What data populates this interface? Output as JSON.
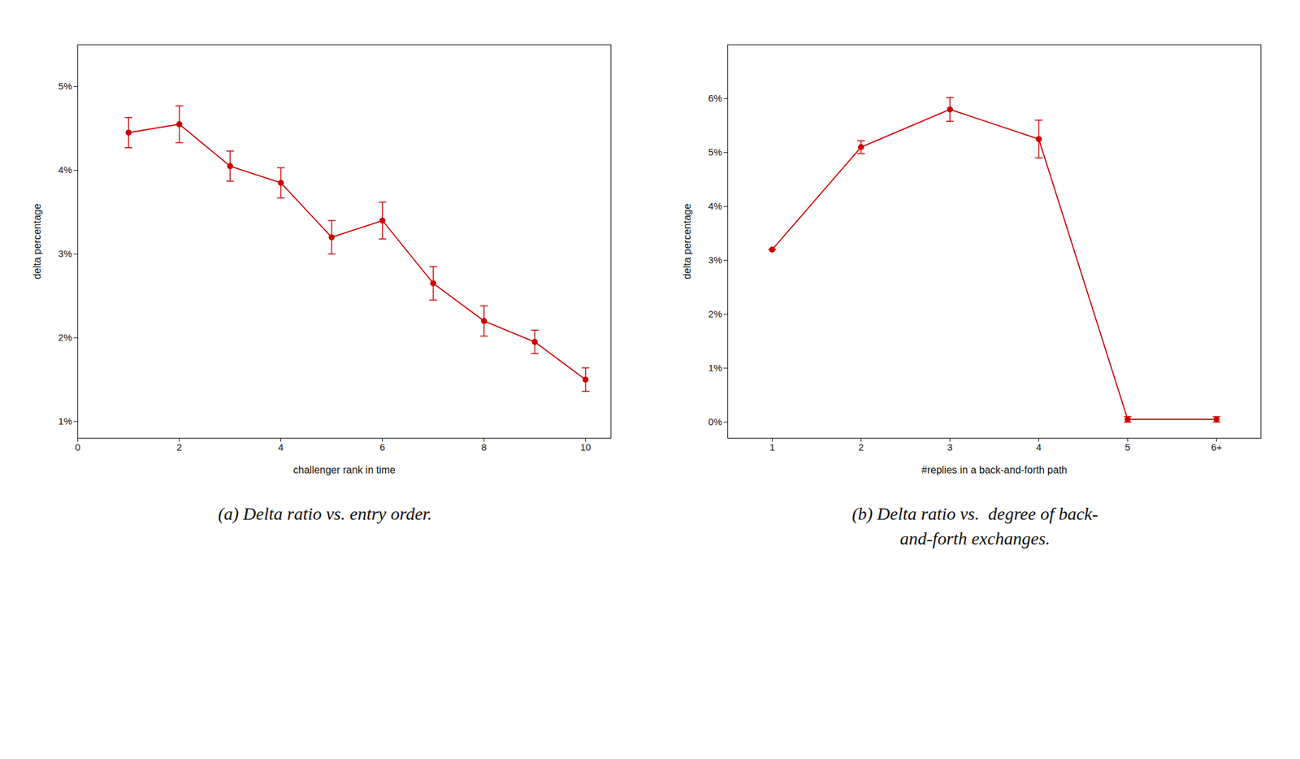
{
  "chart_data": [
    {
      "type": "line",
      "xlabel": "challenger rank in time",
      "ylabel": "delta percentage",
      "x": [
        1,
        2,
        3,
        4,
        5,
        6,
        7,
        8,
        9,
        10
      ],
      "values": [
        4.45,
        4.55,
        4.05,
        3.85,
        3.2,
        3.4,
        2.65,
        2.2,
        1.95,
        1.5
      ],
      "yerr": [
        0.18,
        0.22,
        0.18,
        0.18,
        0.2,
        0.22,
        0.2,
        0.18,
        0.14,
        0.14
      ],
      "xlim": [
        0,
        10.5
      ],
      "ylim": [
        0.8,
        5.5
      ],
      "xticks": [
        0,
        2,
        4,
        6,
        8,
        10
      ],
      "yticks": [
        {
          "value": 1,
          "label": "1%"
        },
        {
          "value": 2,
          "label": "2%"
        },
        {
          "value": 3,
          "label": "3%"
        },
        {
          "value": 4,
          "label": "4%"
        },
        {
          "value": 5,
          "label": "5%"
        }
      ],
      "color": "#cc0000",
      "marker": "circle",
      "grid": false,
      "caption": [
        "(a) Delta ratio vs. entry order."
      ]
    },
    {
      "type": "line",
      "xlabel": "#replies in a back-and-forth path",
      "ylabel": "delta percentage",
      "x": [
        1,
        2,
        3,
        4,
        5,
        6
      ],
      "values": [
        3.2,
        5.1,
        5.8,
        5.25,
        0.05,
        0.05
      ],
      "yerr": [
        0.0,
        0.12,
        0.22,
        0.35,
        0.05,
        0.05
      ],
      "xlim": [
        0.5,
        6.5
      ],
      "ylim": [
        -0.3,
        7.0
      ],
      "xticks": [
        1,
        2,
        3,
        4,
        5,
        {
          "value": 6,
          "label": "6+"
        }
      ],
      "yticks": [
        {
          "value": 0,
          "label": "0%"
        },
        {
          "value": 1,
          "label": "1%"
        },
        {
          "value": 2,
          "label": "2%"
        },
        {
          "value": 3,
          "label": "3%"
        },
        {
          "value": 4,
          "label": "4%"
        },
        {
          "value": 5,
          "label": "5%"
        },
        {
          "value": 6,
          "label": "6%"
        }
      ],
      "color": "#cc0000",
      "marker": "circle",
      "grid": false,
      "caption": [
        "(b) Delta ratio vs.  degree of back-",
        "and-forth exchanges."
      ]
    }
  ]
}
